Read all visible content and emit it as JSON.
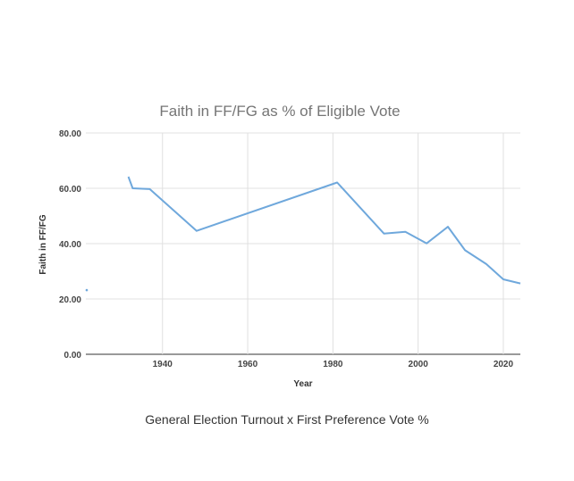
{
  "caption": "General Election Turnout x First Preference Vote %",
  "chart_data": {
    "type": "line",
    "title": "Faith in FF/FG as % of Eligible Vote",
    "xlabel": "Year",
    "ylabel": "Faith in FF/FG",
    "xlim": [
      1922,
      2024
    ],
    "ylim": [
      0,
      80
    ],
    "x_ticks": [
      1940,
      1960,
      1980,
      2000,
      2020
    ],
    "y_ticks": [
      0,
      20,
      40,
      60,
      80
    ],
    "y_tick_labels": [
      "0.00",
      "20.00",
      "40.00",
      "60.00",
      "80.00"
    ],
    "grid": true,
    "legend": "none",
    "series": [
      {
        "color": "#6fa8dc",
        "points": [
          [
            1922,
            23.2
          ],
          [
            1932,
            64.2
          ],
          [
            1933,
            60.0
          ],
          [
            1937,
            59.7
          ],
          [
            1948,
            44.6
          ],
          [
            1981,
            62.1
          ],
          [
            1992,
            43.6
          ],
          [
            1997,
            44.3
          ],
          [
            2002,
            40.1
          ],
          [
            2007,
            46.1
          ],
          [
            2011,
            37.6
          ],
          [
            2016,
            32.6
          ],
          [
            2020,
            27.1
          ],
          [
            2024,
            25.6
          ]
        ]
      }
    ]
  }
}
